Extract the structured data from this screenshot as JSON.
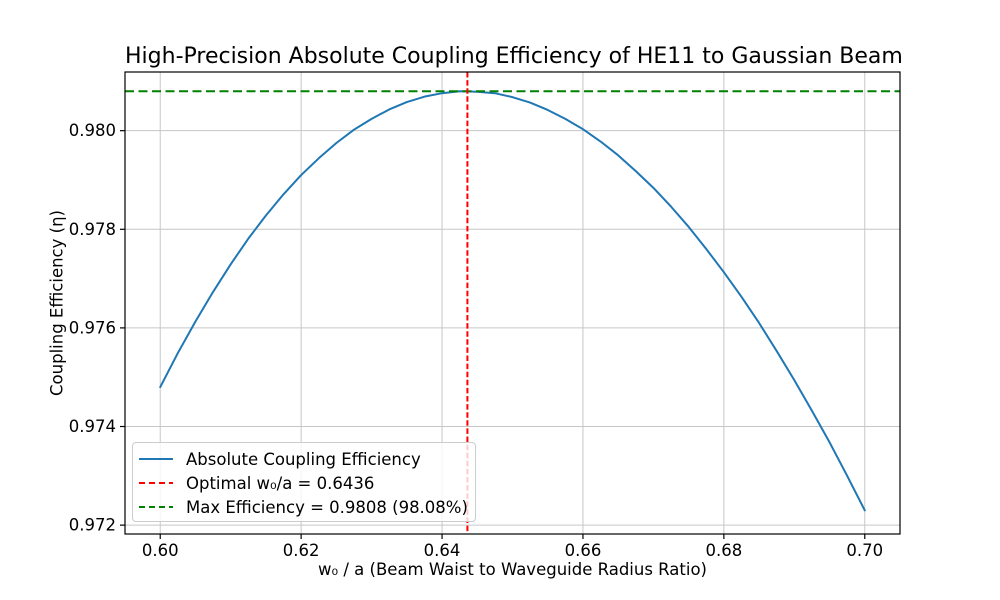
{
  "chart_data": {
    "type": "line",
    "title": "High-Precision Absolute Coupling Efficiency of HE11 to Gaussian Beam",
    "xlabel": "w₀ / a (Beam Waist to Waveguide Radius Ratio)",
    "ylabel": "Coupling Efficiency (η)",
    "xlim": [
      0.595,
      0.705
    ],
    "ylim": [
      0.97182,
      0.98119
    ],
    "grid": true,
    "x_ticks": [
      {
        "v": 0.6,
        "label": "0.60"
      },
      {
        "v": 0.62,
        "label": "0.62"
      },
      {
        "v": 0.64,
        "label": "0.64"
      },
      {
        "v": 0.66,
        "label": "0.66"
      },
      {
        "v": 0.68,
        "label": "0.68"
      },
      {
        "v": 0.7,
        "label": "0.70"
      }
    ],
    "y_ticks": [
      {
        "v": 0.972,
        "label": "0.972"
      },
      {
        "v": 0.974,
        "label": "0.974"
      },
      {
        "v": 0.976,
        "label": "0.976"
      },
      {
        "v": 0.978,
        "label": "0.978"
      },
      {
        "v": 0.98,
        "label": "0.980"
      }
    ],
    "series": [
      {
        "name": "Absolute Coupling Efficiency",
        "color": "#1f77b4",
        "style": "solid",
        "x": [
          0.6,
          0.6025,
          0.605,
          0.6075,
          0.61,
          0.6125,
          0.615,
          0.6175,
          0.62,
          0.6225,
          0.625,
          0.6275,
          0.63,
          0.6325,
          0.635,
          0.6375,
          0.64,
          0.6425,
          0.645,
          0.6475,
          0.65,
          0.6525,
          0.655,
          0.6575,
          0.66,
          0.6625,
          0.665,
          0.6675,
          0.67,
          0.6725,
          0.675,
          0.6775,
          0.68,
          0.6825,
          0.685,
          0.6875,
          0.69,
          0.6925,
          0.695,
          0.6975,
          0.7
        ],
        "y": [
          0.9748,
          0.97549,
          0.97613,
          0.97673,
          0.97729,
          0.97781,
          0.97828,
          0.97871,
          0.9791,
          0.97944,
          0.97975,
          0.98002,
          0.98024,
          0.98043,
          0.98058,
          0.98069,
          0.98076,
          0.9808,
          0.98079,
          0.98076,
          0.98068,
          0.98057,
          0.98042,
          0.98024,
          0.98003,
          0.97978,
          0.9795,
          0.97918,
          0.97884,
          0.97846,
          0.97805,
          0.9776,
          0.97713,
          0.97663,
          0.9761,
          0.97553,
          0.97494,
          0.97432,
          0.97368,
          0.973,
          0.9723
        ]
      }
    ],
    "annotations": {
      "vline": {
        "x": 0.6436,
        "color": "#ff0000",
        "style": "dashed",
        "label": "Optimal w₀/a = 0.6436"
      },
      "hline": {
        "y": 0.9808,
        "color": "#008000",
        "style": "dashed",
        "label": "Max Efficiency = 0.9808 (98.08%)"
      }
    },
    "legend": {
      "position": "lower left",
      "items": [
        {
          "label": "Absolute Coupling Efficiency",
          "color": "#1f77b4",
          "dash": "solid"
        },
        {
          "label": "Optimal w₀/a = 0.6436",
          "color": "#ff0000",
          "dash": "dashed"
        },
        {
          "label": "Max Efficiency = 0.9808 (98.08%)",
          "color": "#008000",
          "dash": "dashed"
        }
      ]
    },
    "colors": {
      "grid": "#c6c6c6",
      "axes": "#000000",
      "background": "#ffffff",
      "text": "#000000"
    }
  }
}
